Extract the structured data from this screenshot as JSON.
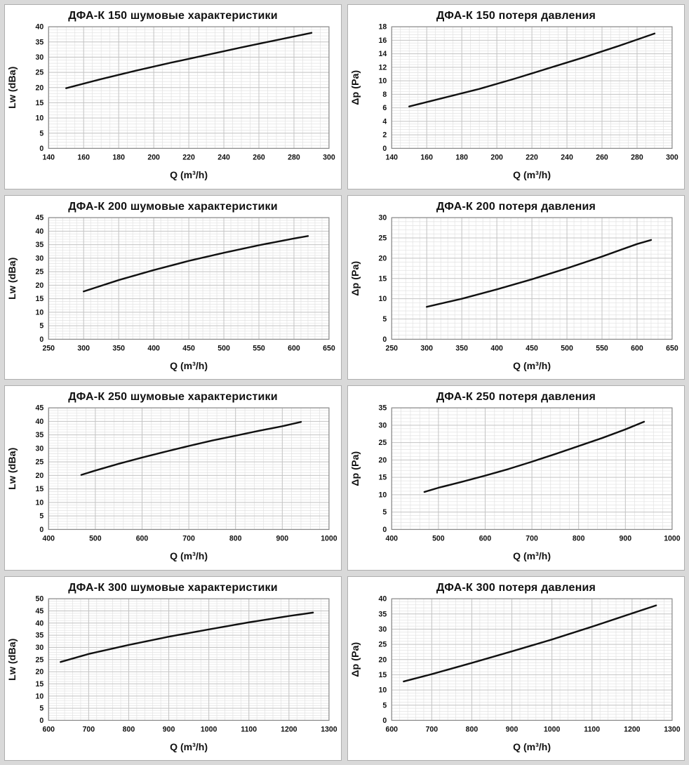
{
  "page": {
    "background": "#d9d9d9",
    "panel_background": "#ffffff",
    "panel_border": "#aeaeae",
    "grid_minor_color": "#e2e2e2",
    "grid_major_color": "#c4c4c4",
    "axis_color": "#8a8a8a",
    "curve_color": "#111111"
  },
  "chart_data": [
    {
      "type": "line",
      "title": "ДФА-К 150 шумовые характеристики",
      "xlabel": "Q (m³/h)",
      "ylabel": "Lw (dBa)",
      "xlim": [
        140,
        300
      ],
      "ylim": [
        0,
        40
      ],
      "xticks": [
        140,
        160,
        180,
        200,
        220,
        240,
        260,
        280,
        300
      ],
      "yticks": [
        0,
        5,
        10,
        15,
        20,
        25,
        30,
        35,
        40
      ],
      "x_minor_step": 5,
      "y_minor_step": 1,
      "x": [
        150,
        170,
        190,
        210,
        230,
        250,
        270,
        290
      ],
      "y": [
        19.8,
        22.8,
        25.6,
        28.2,
        30.7,
        33.2,
        35.6,
        38.0
      ]
    },
    {
      "type": "line",
      "title": "ДФА-К 150 потеря давления",
      "xlabel": "Q (m³/h)",
      "ylabel": "Δp (Pa)",
      "xlim": [
        140,
        300
      ],
      "ylim": [
        0,
        18
      ],
      "xticks": [
        140,
        160,
        180,
        200,
        220,
        240,
        260,
        280,
        300
      ],
      "yticks": [
        0,
        2,
        4,
        6,
        8,
        10,
        12,
        14,
        16,
        18
      ],
      "x_minor_step": 5,
      "y_minor_step": 0.4,
      "x": [
        150,
        170,
        190,
        210,
        230,
        250,
        270,
        290
      ],
      "y": [
        6.2,
        7.5,
        8.8,
        10.3,
        11.9,
        13.5,
        15.2,
        17.0
      ]
    },
    {
      "type": "line",
      "title": "ДФА-К 200 шумовые характеристики",
      "xlabel": "Q (m³/h)",
      "ylabel": "Lw (dBa)",
      "xlim": [
        250,
        650
      ],
      "ylim": [
        0,
        45
      ],
      "xticks": [
        250,
        300,
        350,
        400,
        450,
        500,
        550,
        600,
        650
      ],
      "yticks": [
        0,
        5,
        10,
        15,
        20,
        25,
        30,
        35,
        40,
        45
      ],
      "x_minor_step": 10,
      "y_minor_step": 1,
      "x": [
        300,
        350,
        400,
        450,
        500,
        550,
        600,
        620
      ],
      "y": [
        17.7,
        21.9,
        25.6,
        29.0,
        32.0,
        34.8,
        37.3,
        38.2
      ]
    },
    {
      "type": "line",
      "title": "ДФА-К 200 потеря давления",
      "xlabel": "Q (m³/h)",
      "ylabel": "Δp (Pa)",
      "xlim": [
        250,
        650
      ],
      "ylim": [
        0,
        30
      ],
      "xticks": [
        250,
        300,
        350,
        400,
        450,
        500,
        550,
        600,
        650
      ],
      "yticks": [
        0,
        5,
        10,
        15,
        20,
        25,
        30
      ],
      "x_minor_step": 10,
      "y_minor_step": 1,
      "x": [
        300,
        350,
        400,
        450,
        500,
        550,
        600,
        620
      ],
      "y": [
        8.0,
        10.0,
        12.3,
        14.8,
        17.5,
        20.4,
        23.5,
        24.5
      ]
    },
    {
      "type": "line",
      "title": "ДФА-К 250 шумовые характеристики",
      "xlabel": "Q (m³/h)",
      "ylabel": "Lw (dBa)",
      "xlim": [
        400,
        1000
      ],
      "ylim": [
        0,
        45
      ],
      "xticks": [
        400,
        500,
        600,
        700,
        800,
        900,
        1000
      ],
      "yticks": [
        0,
        5,
        10,
        15,
        20,
        25,
        30,
        35,
        40,
        45
      ],
      "x_minor_step": 20,
      "y_minor_step": 1,
      "x": [
        470,
        500,
        550,
        600,
        650,
        700,
        750,
        800,
        850,
        900,
        940
      ],
      "y": [
        20.2,
        21.8,
        24.3,
        26.6,
        28.8,
        30.9,
        32.9,
        34.7,
        36.5,
        38.2,
        39.8
      ]
    },
    {
      "type": "line",
      "title": "ДФА-К 250 потеря давления",
      "xlabel": "Q (m³/h)",
      "ylabel": "Δp (Pa)",
      "xlim": [
        400,
        1000
      ],
      "ylim": [
        0,
        35
      ],
      "xticks": [
        400,
        500,
        600,
        700,
        800,
        900,
        1000
      ],
      "yticks": [
        0,
        5,
        10,
        15,
        20,
        25,
        30,
        35
      ],
      "x_minor_step": 20,
      "y_minor_step": 1,
      "x": [
        470,
        500,
        550,
        600,
        650,
        700,
        750,
        800,
        850,
        900,
        940
      ],
      "y": [
        10.8,
        12.0,
        13.7,
        15.5,
        17.4,
        19.5,
        21.7,
        24.0,
        26.3,
        28.8,
        31.0
      ]
    },
    {
      "type": "line",
      "title": "ДФА-К 300 шумовые характеристики",
      "xlabel": "Q (m³/h)",
      "ylabel": "Lw (dBa)",
      "xlim": [
        600,
        1300
      ],
      "ylim": [
        0,
        50
      ],
      "xticks": [
        600,
        700,
        800,
        900,
        1000,
        1100,
        1200,
        1300
      ],
      "yticks": [
        0,
        5,
        10,
        15,
        20,
        25,
        30,
        35,
        40,
        45,
        50
      ],
      "x_minor_step": 20,
      "y_minor_step": 1,
      "x": [
        630,
        700,
        800,
        900,
        1000,
        1100,
        1200,
        1260
      ],
      "y": [
        24.0,
        27.3,
        31.0,
        34.4,
        37.4,
        40.3,
        42.9,
        44.3
      ]
    },
    {
      "type": "line",
      "title": "ДФА-К 300 потеря давления",
      "xlabel": "Q (m³/h)",
      "ylabel": "Δp (Pa)",
      "xlim": [
        600,
        1300
      ],
      "ylim": [
        0,
        40
      ],
      "xticks": [
        600,
        700,
        800,
        900,
        1000,
        1100,
        1200,
        1300
      ],
      "yticks": [
        0,
        5,
        10,
        15,
        20,
        25,
        30,
        35,
        40
      ],
      "x_minor_step": 20,
      "y_minor_step": 1,
      "x": [
        630,
        700,
        800,
        900,
        1000,
        1100,
        1200,
        1260
      ],
      "y": [
        12.8,
        15.2,
        18.9,
        22.7,
        26.6,
        30.8,
        35.2,
        37.8
      ]
    }
  ]
}
